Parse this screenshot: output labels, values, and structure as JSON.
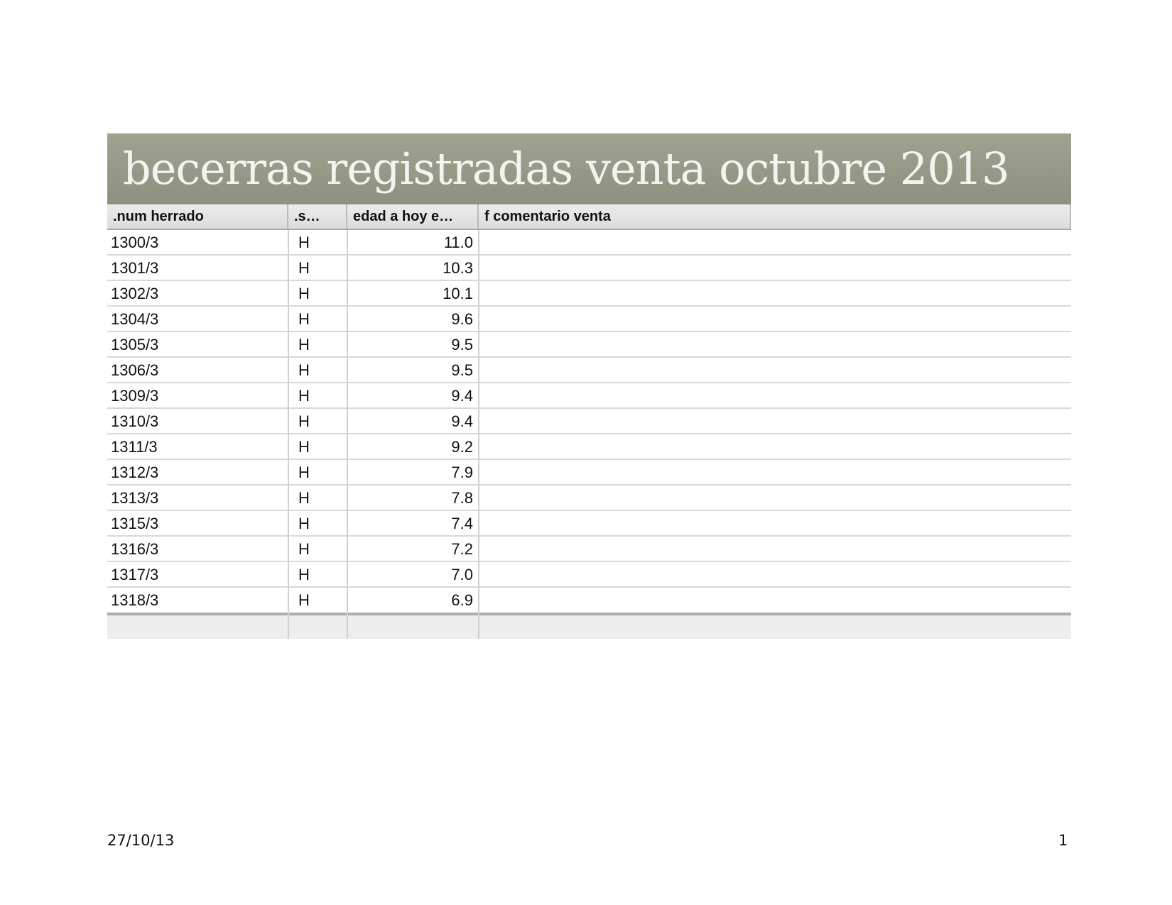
{
  "header": {
    "title": "becerras registradas venta octubre 2013"
  },
  "table": {
    "columns": [
      ".num herrado",
      ".s…",
      "edad a hoy e…",
      "f comentario venta"
    ],
    "rows": [
      [
        "1300/3",
        "H",
        "11.0"
      ],
      [
        "1301/3",
        "H",
        "10.3"
      ],
      [
        "1302/3",
        "H",
        "10.1"
      ],
      [
        "1304/3",
        "H",
        "9.6"
      ],
      [
        "1305/3",
        "H",
        "9.5"
      ],
      [
        "1306/3",
        "H",
        "9.5"
      ],
      [
        "1309/3",
        "H",
        "9.4"
      ],
      [
        "1310/3",
        "H",
        "9.4"
      ],
      [
        "1311/3",
        "H",
        "9.2"
      ],
      [
        "1312/3",
        "H",
        "7.9"
      ],
      [
        "1313/3",
        "H",
        "7.8"
      ],
      [
        "1315/3",
        "H",
        "7.4"
      ],
      [
        "1316/3",
        "H",
        "7.2"
      ],
      [
        "1317/3",
        "H",
        "7.0"
      ],
      [
        "1318/3",
        "H",
        "6.9"
      ]
    ]
  },
  "footer": {
    "date": "27/10/13",
    "page": "1"
  }
}
